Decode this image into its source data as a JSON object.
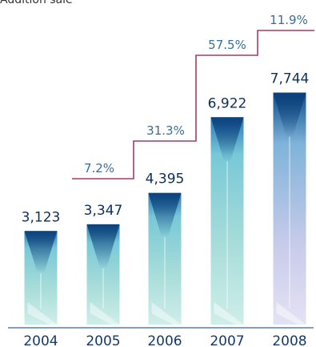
{
  "chart_data": {
    "type": "bar",
    "title": "Addition sale",
    "categories": [
      "2004",
      "2005",
      "2006",
      "2007",
      "2008"
    ],
    "values": [
      3123,
      3347,
      4395,
      6922,
      7744
    ],
    "value_labels": [
      "3,123",
      "3,347",
      "4,395",
      "6,922",
      "7,744"
    ],
    "growth_labels": [
      "7.2%",
      "31.3%",
      "57.5%",
      "11.9%"
    ],
    "ylim": [
      0,
      8000
    ],
    "grid": false,
    "legend": "none",
    "colors": {
      "bar_light": "#b9e6e2",
      "bar_mid": "#6fc6d6",
      "bar_dark": "#0d4f8b",
      "bar_last_light": "#d6d2ee",
      "step_line": "#a23b6b",
      "value_text": "#0b2f5c",
      "axis_text": "#123a6b",
      "growth_text": "#3a6e9a",
      "axis_line": "#5a7fa6"
    }
  }
}
